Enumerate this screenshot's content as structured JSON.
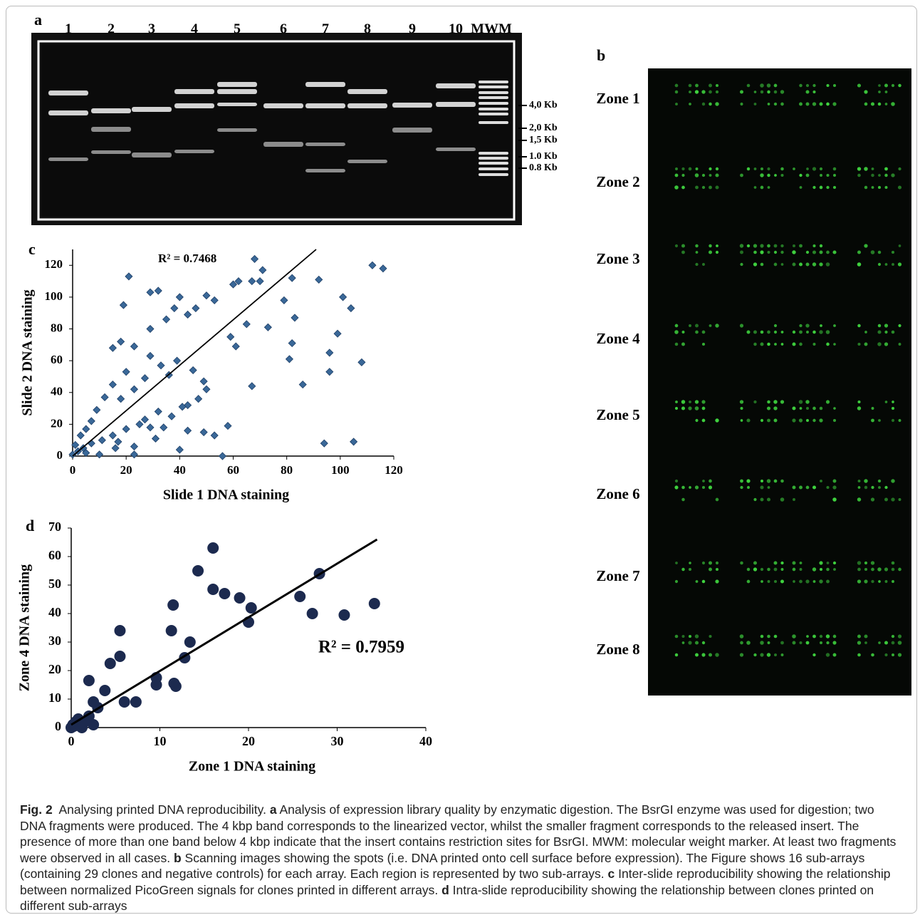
{
  "panel_labels": [
    "a",
    "b",
    "c",
    "d"
  ],
  "gel": {
    "lanes": [
      "1",
      "2",
      "3",
      "4",
      "5",
      "6",
      "7",
      "8",
      "9",
      "10",
      "MWM"
    ],
    "sizes": [
      "4,0 Kb",
      "2,0 Kb",
      "1,5 Kb",
      "1.0 Kb",
      "0.8 Kb"
    ]
  },
  "array": {
    "zones": [
      "Zone 1",
      "Zone 2",
      "Zone 3",
      "Zone 4",
      "Zone 5",
      "Zone 6",
      "Zone 7",
      "Zone 8"
    ]
  },
  "chart_data": [
    {
      "type": "scatter",
      "annotation": "R² = 0.7468",
      "x_label": "Slide 1 DNA staining",
      "y_label": "Slide 2  DNA staining",
      "marker": "diamond",
      "color": "#3a6898",
      "xlim": [
        0,
        120
      ],
      "ylim": [
        0,
        130
      ],
      "xticks": [
        0,
        20,
        40,
        60,
        80,
        100,
        120
      ],
      "yticks": [
        0,
        20,
        40,
        60,
        80,
        100,
        120
      ],
      "x": [
        21,
        29,
        32,
        19,
        18,
        15,
        20,
        29,
        29,
        23,
        38,
        35,
        40,
        46,
        50,
        43,
        53,
        60,
        62,
        68,
        71,
        70,
        67,
        59,
        61,
        65,
        67,
        73,
        79,
        82,
        83,
        81,
        82,
        86,
        92,
        96,
        96,
        101,
        104,
        99,
        108,
        112,
        116,
        94,
        105,
        58,
        56,
        40,
        49,
        53,
        43,
        37,
        32,
        27,
        25,
        20,
        15,
        11,
        7,
        4,
        2,
        0,
        1,
        3,
        5,
        7,
        9,
        12,
        15,
        18,
        23,
        27,
        33,
        36,
        39,
        45,
        49,
        43,
        47,
        50,
        16,
        23,
        31,
        23,
        10,
        5,
        17,
        29,
        34,
        41
      ],
      "y": [
        113,
        103,
        104,
        95,
        72,
        68,
        53,
        80,
        63,
        69,
        93,
        86,
        100,
        93,
        101,
        89,
        98,
        108,
        110,
        124,
        117,
        110,
        110,
        75,
        69,
        83,
        44,
        81,
        98,
        112,
        87,
        61,
        71,
        45,
        111,
        65,
        53,
        100,
        93,
        77,
        59,
        120,
        118,
        8,
        9,
        19,
        0,
        4,
        15,
        13,
        16,
        25,
        28,
        23,
        20,
        17,
        13,
        10,
        8,
        5,
        3,
        1,
        7,
        13,
        17,
        22,
        29,
        37,
        45,
        36,
        42,
        49,
        57,
        51,
        60,
        54,
        47,
        32,
        36,
        42,
        5,
        6,
        11,
        1,
        1,
        2,
        9,
        18,
        18,
        31
      ],
      "trendline": {
        "x": [
          0,
          91
        ],
        "y": [
          0,
          130
        ]
      }
    },
    {
      "type": "scatter",
      "annotation": "R² = 0.7959",
      "x_label": "Zone 1 DNA staining",
      "y_label": "Zone 4  DNA staining",
      "marker": "circle",
      "color": "#1c2a4f",
      "xlim": [
        0,
        40
      ],
      "ylim": [
        0,
        70
      ],
      "xticks": [
        0,
        10,
        20,
        30,
        40
      ],
      "yticks": [
        0,
        10,
        20,
        30,
        40,
        50,
        60,
        70
      ],
      "x": [
        0.2,
        0.5,
        0.3,
        0.8,
        1,
        1.2,
        1.5,
        2,
        2,
        2.5,
        2.5,
        3,
        3.8,
        4.4,
        5.5,
        5.5,
        6,
        7.3,
        9.6,
        9.6,
        11.3,
        11.5,
        11.6,
        11.8,
        12.8,
        13.4,
        14.3,
        16,
        16,
        17.3,
        19,
        20,
        20.3,
        25.8,
        27.2,
        28,
        30.8,
        34.2,
        0,
        1,
        0.6
      ],
      "y": [
        1,
        2,
        0.5,
        3,
        1,
        0,
        2,
        4,
        16.5,
        1,
        9,
        7,
        13,
        22.5,
        25,
        34,
        9,
        9,
        17.5,
        15,
        34,
        43,
        15.5,
        14.5,
        24.5,
        30,
        55,
        63,
        48.5,
        47,
        45.5,
        37,
        42,
        46,
        40,
        54,
        39.5,
        43.5,
        0,
        0.5,
        1.5
      ],
      "trendline": {
        "x": [
          0,
          34.5
        ],
        "y": [
          1,
          66
        ]
      }
    }
  ],
  "caption": {
    "label": "Fig. 2",
    "title": "Analysing printed DNA reproducibility.",
    "parts": [
      {
        "letter": "a",
        "text": "Analysis of expression library quality by enzymatic digestion. The BsrGI enzyme was used for digestion; two DNA fragments were produced. The 4 kbp band corresponds to the linearized vector, whilst the smaller fragment corresponds to the released insert. The presence of more than one band below 4 kbp indicate that the insert contains restriction sites for BsrGI. MWM: molecular weight marker. At least two fragments were observed in all cases."
      },
      {
        "letter": "b",
        "text": "Scanning images showing the spots (i.e. DNA printed onto cell surface before expression). The Figure shows 16 sub-arrays (containing 29 clones and negative controls) for each array. Each region is represented by two sub-arrays."
      },
      {
        "letter": "c",
        "text": "Inter-slide reproducibility showing the relationship between normalized PicoGreen signals for clones printed in different arrays."
      },
      {
        "letter": "d",
        "text": "Intra-slide reproducibility showing the relationship between clones printed on different sub-arrays"
      }
    ]
  }
}
